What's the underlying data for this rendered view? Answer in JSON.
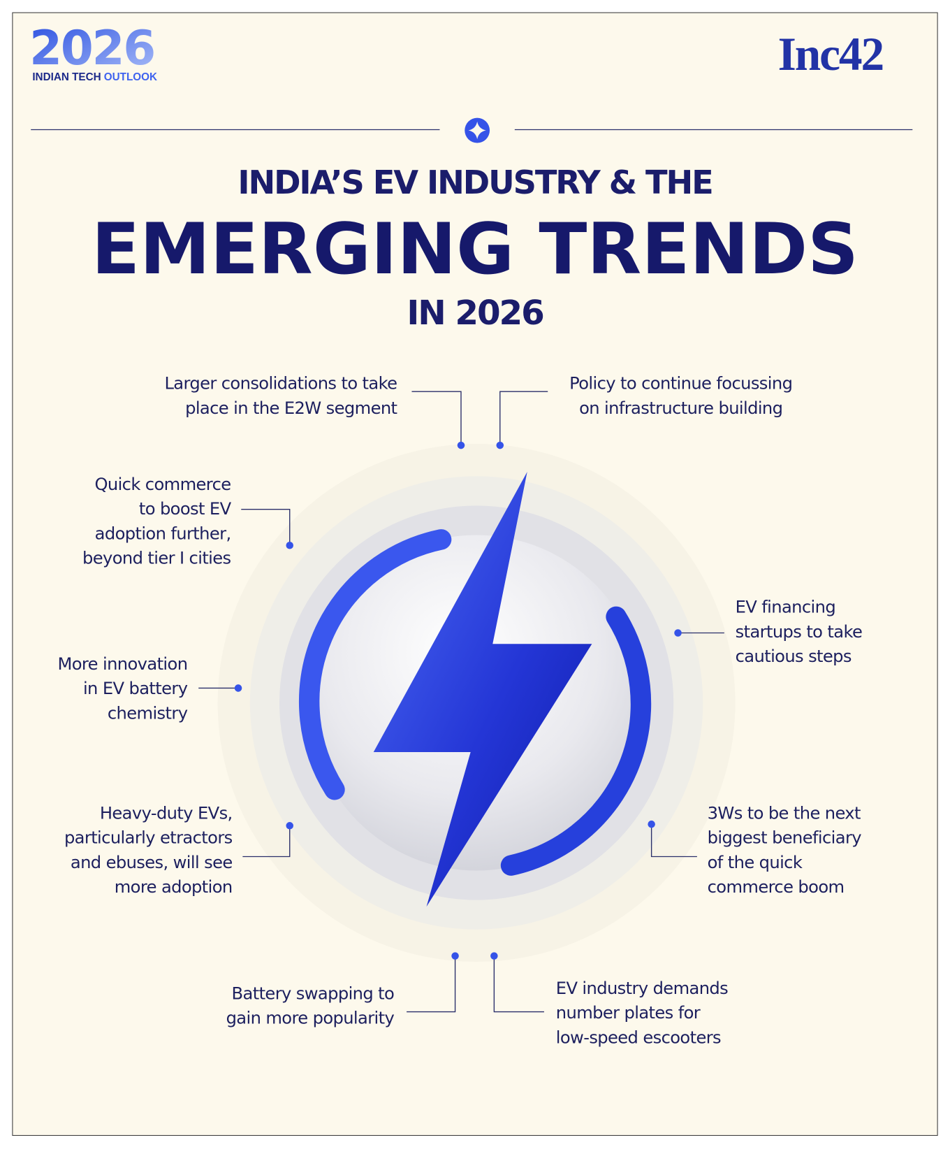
{
  "header": {
    "logo_year": "2026",
    "logo_tagline_main": "INDIAN TECH",
    "logo_tagline_accent": "OUTLOOK",
    "brand": "Inc42"
  },
  "title": {
    "line1": "INDIA’S EV INDUSTRY & THE",
    "line2": "EMERGING TRENDS",
    "line3": "IN 2026"
  },
  "trends": [
    {
      "lines": [
        "Larger consolidations to take",
        "place in the E2W segment"
      ]
    },
    {
      "lines": [
        "Policy to continue focussing",
        "on infrastructure building"
      ]
    },
    {
      "lines": [
        "Quick commerce",
        "to boost EV",
        "adoption further,",
        "beyond tier I cities"
      ]
    },
    {
      "lines": [
        "EV financing",
        "startups to take",
        "cautious steps"
      ]
    },
    {
      "lines": [
        "More innovation",
        "in EV battery",
        "chemistry"
      ]
    },
    {
      "lines": [
        "Heavy-duty EVs,",
        "particularly etractors",
        "and ebuses, will see",
        "more adoption"
      ]
    },
    {
      "lines": [
        "3Ws to be the next",
        "biggest beneficiary",
        "of the quick",
        "commerce boom"
      ]
    },
    {
      "lines": [
        "Battery swapping to",
        "gain more popularity"
      ]
    },
    {
      "lines": [
        "EV industry demands",
        "number plates for",
        "low-speed escooters"
      ]
    }
  ]
}
